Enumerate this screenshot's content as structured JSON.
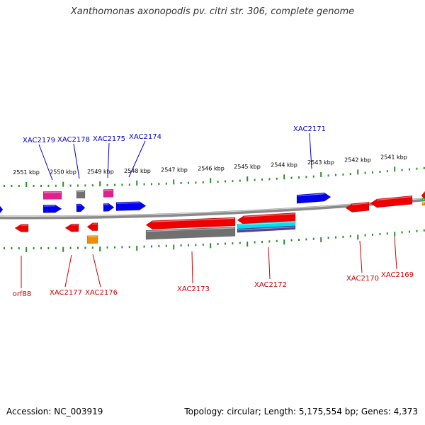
{
  "title": "Xanthomonas axonopodis pv. citri str. 306, complete genome",
  "footer": {
    "accession": "Accession: NC_003919",
    "summary": "Topology: circular; Length: 5,175,554 bp; Genes: 4,373"
  },
  "colors": {
    "forward_label": "#0000cc",
    "reverse_label": "#cc0000",
    "tick": "#2e8b2e",
    "backbone": "#8a8a8a",
    "blue": "#0000ee",
    "red": "#ee0000",
    "pink": "#e0208c",
    "gray": "#707070",
    "orange": "#f08c00",
    "cyan": "#00e0f0",
    "purple": "#5040a0"
  },
  "scale_labels": [
    "2551 kbp",
    "2550 kbp",
    "2549 kbp",
    "2548 kbp",
    "2547 kbp",
    "2546 kbp",
    "2545 kbp",
    "2544 kbp",
    "2543 kbp",
    "2542 kbp",
    "2541 kbp"
  ],
  "forward_labels": [
    "XAC2179",
    "XAC2178",
    "XAC2175",
    "XAC2174",
    "XAC2171"
  ],
  "reverse_labels": [
    "orf88",
    "XAC2177",
    "XAC2176",
    "XAC2173",
    "XAC2172",
    "XAC2170",
    "XAC2169"
  ]
}
